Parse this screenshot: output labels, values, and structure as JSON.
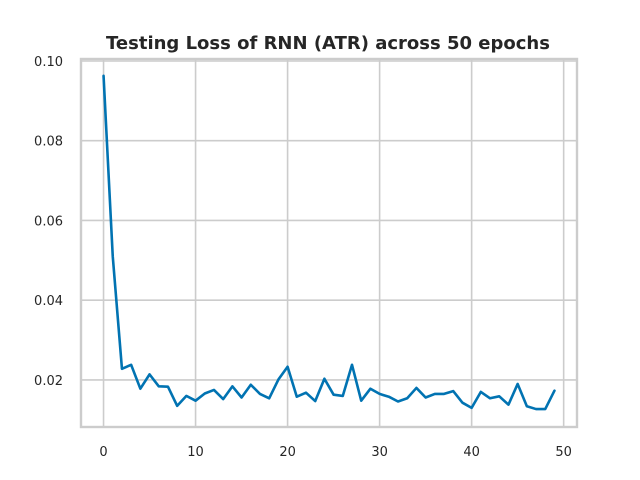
{
  "chart_data": {
    "type": "line",
    "title": "Testing Loss of RNN (ATR) across 50 epochs",
    "xlabel": "",
    "ylabel": "",
    "xlim": [
      -2.45,
      51.45
    ],
    "ylim": [
      0.0082,
      0.1005
    ],
    "x_ticks": [
      0,
      10,
      20,
      30,
      40,
      50
    ],
    "y_ticks": [
      0.02,
      0.04,
      0.06,
      0.08,
      0.1
    ],
    "x_tick_labels": [
      "0",
      "10",
      "20",
      "30",
      "40",
      "50"
    ],
    "y_tick_labels": [
      "0.02",
      "0.04",
      "0.06",
      "0.08",
      "0.10"
    ],
    "grid": true,
    "line_color": "#0173b2",
    "grid_color": "#cccccc",
    "series": [
      {
        "x": [
          0,
          1,
          2,
          3,
          4,
          5,
          6,
          7,
          8,
          9,
          10,
          11,
          12,
          13,
          14,
          15,
          16,
          17,
          18,
          19,
          20,
          21,
          22,
          23,
          24,
          25,
          26,
          27,
          28,
          29,
          30,
          31,
          32,
          33,
          34,
          35,
          36,
          37,
          38,
          39,
          40,
          41,
          42,
          43,
          44,
          45,
          46,
          47,
          48,
          49
        ],
        "values": [
          0.0963,
          0.051,
          0.0228,
          0.0238,
          0.0178,
          0.0214,
          0.0184,
          0.0183,
          0.0135,
          0.016,
          0.0148,
          0.0166,
          0.0175,
          0.0152,
          0.0184,
          0.0156,
          0.0188,
          0.0165,
          0.0154,
          0.0201,
          0.0233,
          0.0158,
          0.0168,
          0.0147,
          0.0203,
          0.0163,
          0.016,
          0.0238,
          0.0148,
          0.0178,
          0.0165,
          0.0158,
          0.0146,
          0.0154,
          0.018,
          0.0156,
          0.0165,
          0.0165,
          0.0172,
          0.0143,
          0.013,
          0.017,
          0.0154,
          0.0159,
          0.0138,
          0.019,
          0.0134,
          0.0127,
          0.0127,
          0.0173
        ]
      }
    ]
  }
}
